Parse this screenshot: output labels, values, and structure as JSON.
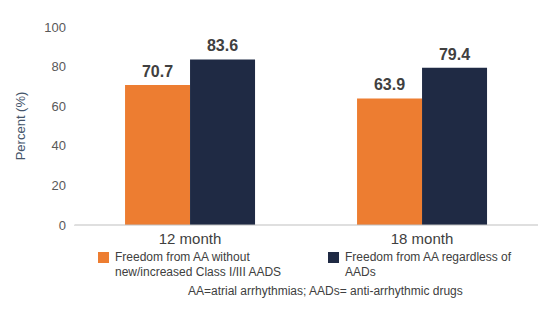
{
  "chart_data": {
    "type": "bar",
    "categories": [
      "12 month",
      "18 month"
    ],
    "series": [
      {
        "name": "Freedom from AA without new/increased Class I/III AADS",
        "color": "#ED7D31",
        "values": [
          70.7,
          63.9
        ]
      },
      {
        "name": "Freedom from AA regardless of AADs",
        "color": "#1F2A44",
        "values": [
          83.6,
          79.4
        ]
      }
    ],
    "y_label": "Percent (%)",
    "ylim": [
      0,
      100
    ],
    "yticks": [
      0,
      20,
      40,
      60,
      80,
      100
    ],
    "grid": false,
    "legend": "bottom",
    "data_labels": true,
    "annotations": [
      "AA=atrial arrhythmias; AADs= anti-arrhythmic drugs"
    ]
  }
}
